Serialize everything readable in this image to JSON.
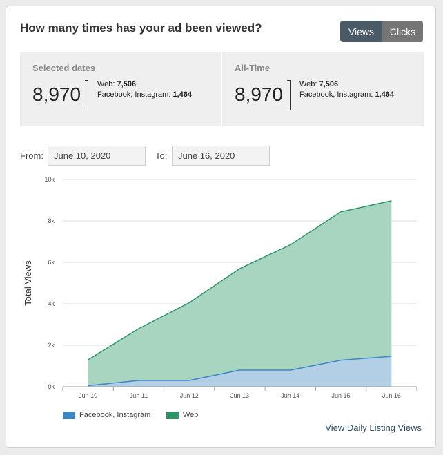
{
  "header": {
    "title": "How many times has your ad been viewed?"
  },
  "toggle": {
    "views_label": "Views",
    "clicks_label": "Clicks"
  },
  "summary": {
    "selected": {
      "label": "Selected dates",
      "total": "8,970",
      "web_label": "Web:",
      "web_value": "7,506",
      "social_label": "Facebook, Instagram:",
      "social_value": "1,464"
    },
    "alltime": {
      "label": "All-Time",
      "total": "8,970",
      "web_label": "Web:",
      "web_value": "7,506",
      "social_label": "Facebook, Instagram:",
      "social_value": "1,464"
    }
  },
  "dates": {
    "from_label": "From:",
    "from_value": "June 10, 2020",
    "to_label": "To:",
    "to_value": "June 16, 2020"
  },
  "chart_data": {
    "type": "area",
    "stacked": true,
    "categories": [
      "Jun 10",
      "Jun 11",
      "Jun 12",
      "Jun 13",
      "Jun 14",
      "Jun 15",
      "Jun 16"
    ],
    "series": [
      {
        "name": "Facebook, Instagram",
        "color": "#3d85c6",
        "fill": "#b3cfe6",
        "values": [
          50,
          300,
          300,
          800,
          800,
          1280,
          1464
        ]
      },
      {
        "name": "Web",
        "color": "#2e9467",
        "fill": "#a8d5bf",
        "values": [
          1250,
          2500,
          3750,
          4900,
          6050,
          7160,
          7506
        ]
      }
    ],
    "ylabel": "Total Views",
    "ylim": [
      0,
      10000
    ],
    "yticks": [
      "0k",
      "2k",
      "4k",
      "6k",
      "8k",
      "10k"
    ],
    "grid": true,
    "legend_position": "bottom-left"
  },
  "footer": {
    "link_label": "View Daily Listing Views"
  }
}
